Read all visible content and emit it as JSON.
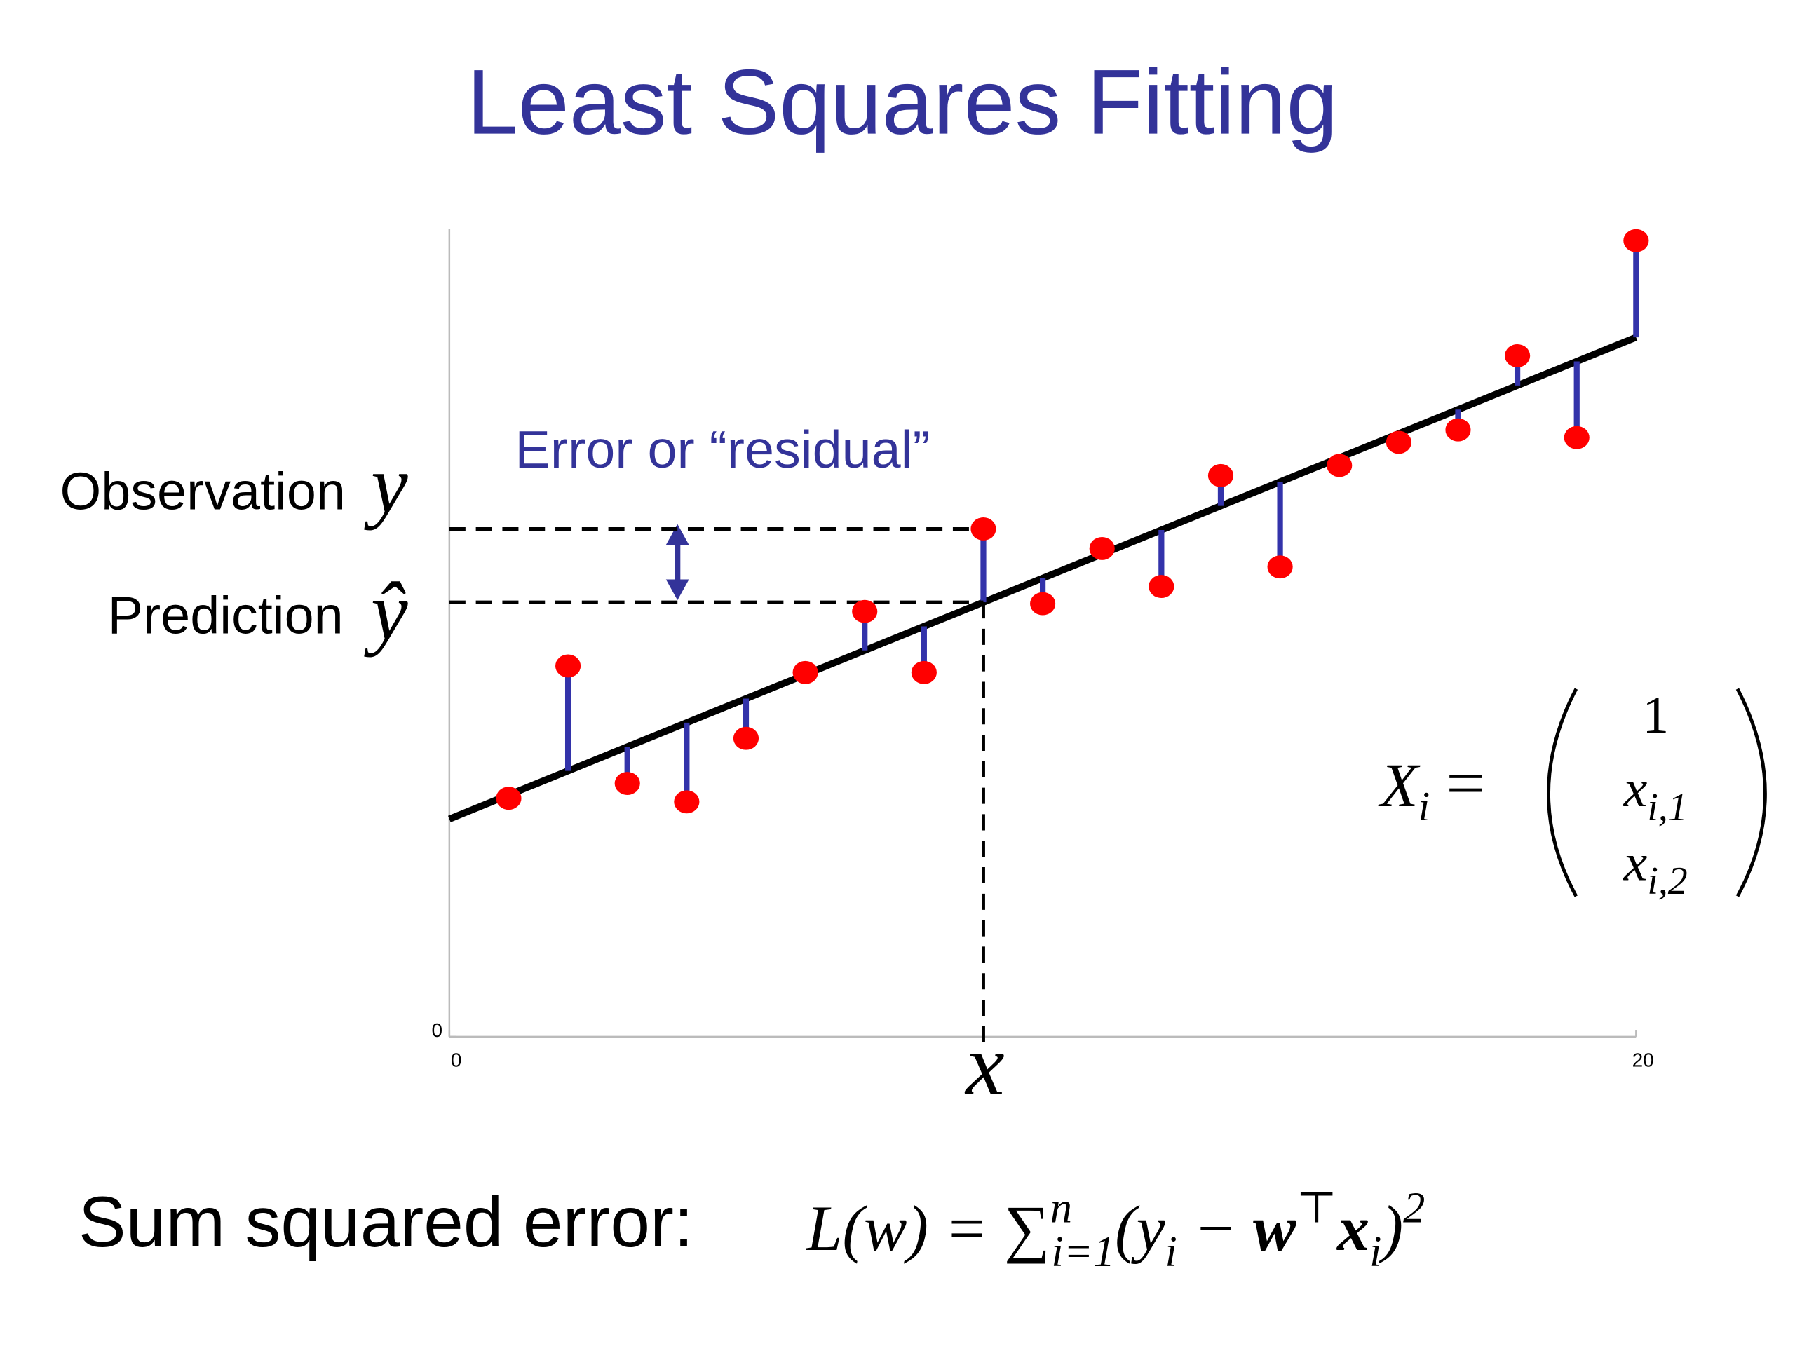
{
  "chart_data": {
    "type": "scatter",
    "title": "Least Squares Fitting",
    "x": [
      1,
      2,
      3,
      4,
      5,
      6,
      7,
      8,
      9,
      10,
      11,
      12,
      13,
      14,
      15,
      16,
      17,
      18,
      19,
      20
    ],
    "series": [
      {
        "name": "observations",
        "color": "#ff0000",
        "values": [
          4.02,
          6.25,
          4.27,
          3.96,
          5.03,
          6.14,
          7.17,
          6.14,
          8.56,
          7.3,
          8.23,
          7.59,
          9.46,
          7.92,
          9.63,
          10.02,
          10.23,
          11.48,
          10.1,
          13.42
        ]
      }
    ],
    "fit_line": {
      "x": [
        0,
        20
      ],
      "y": [
        3.67,
        11.79
      ],
      "color": "#000000"
    },
    "residual_color": "#3333aa",
    "highlight_index": 8,
    "xlim": [
      0,
      20
    ],
    "ylim": [
      0,
      14
    ],
    "xticks": [
      0,
      20
    ],
    "yticks": [
      0
    ],
    "annotations": {
      "error": "Error or “residual”",
      "observation": "Observation",
      "observation_symbol": "y",
      "prediction": "Prediction",
      "prediction_symbol": "ŷ",
      "x_symbol": "x"
    },
    "vector": {
      "name": "X",
      "name_sub": "i",
      "equals": "=",
      "entries": [
        {
          "base": "1"
        },
        {
          "base": "x",
          "sub": "i,1"
        },
        {
          "base": "x",
          "sub": "i,2"
        }
      ]
    },
    "loss_label": "Sum squared error:",
    "loss": [
      {
        "text": "L(w) = "
      },
      {
        "text": "∑"
      },
      {
        "text": "n",
        "pos": "sup"
      },
      {
        "text": "i=1",
        "pos": "sub"
      },
      {
        "text": "(y"
      },
      {
        "text": "i",
        "pos": "sub"
      },
      {
        "text": " − "
      },
      {
        "text": "w",
        "weight": "bold"
      },
      {
        "text": "⊤",
        "pos": "sup"
      },
      {
        "text": "x",
        "weight": "bold"
      },
      {
        "text": "i",
        "pos": "sub"
      },
      {
        "text": ")"
      },
      {
        "text": "2",
        "pos": "sup"
      }
    ]
  }
}
